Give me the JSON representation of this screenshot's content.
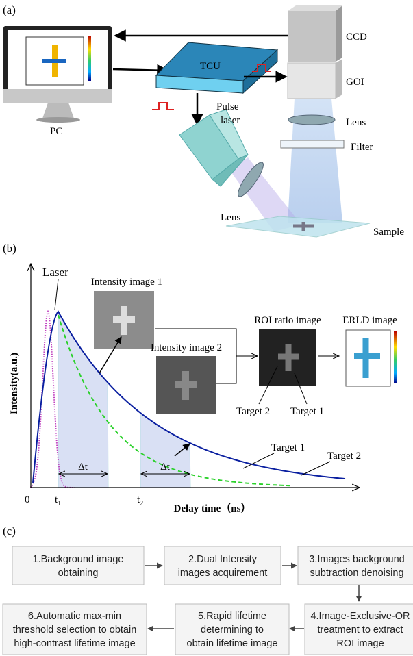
{
  "panel_a": {
    "label": "(a)",
    "ccd": "CCD",
    "goi": "GOI",
    "tcu": "TCU",
    "pc": "PC",
    "pulse_laser": [
      "Pulse",
      "laser"
    ],
    "lens_top": "Lens",
    "filter": "Filter",
    "lens_bottom": "Lens",
    "sample": "Sample"
  },
  "panel_b": {
    "label": "(b)",
    "laser": "Laser",
    "intensity_image_1": "Intensity image 1",
    "intensity_image_2": "Intensity image 2",
    "roi_ratio_image": "ROI ratio image",
    "erld_image": "ERLD image",
    "roi_target_2": "Target 2",
    "roi_target_1": "Target 1",
    "curve_target_1": "Target 1",
    "curve_target_2": "Target 2",
    "y_axis_label": "Intensity(a.u.)",
    "x_axis_label": "Delay time（ns）",
    "origin": "0",
    "t1": {
      "base": "t",
      "sub": "1"
    },
    "t2": {
      "base": "t",
      "sub": "2"
    },
    "delta_t_1": "Δt",
    "delta_t_2": "Δt"
  },
  "panel_c": {
    "label": "(c)",
    "steps": [
      [
        "1.Background image",
        "obtaining"
      ],
      [
        "2.Dual Intensity",
        "images acquirement"
      ],
      [
        "3.Images background",
        "subtraction denoising"
      ],
      [
        "4.Image-Exclusive-OR",
        "treatment to extract",
        "ROI image"
      ],
      [
        "5.Rapid lifetime",
        "determining to",
        "obtain lifetime image"
      ],
      [
        "6.Automatic max-min",
        "threshold selection to obtain",
        "high-contrast lifetime image"
      ]
    ]
  }
}
